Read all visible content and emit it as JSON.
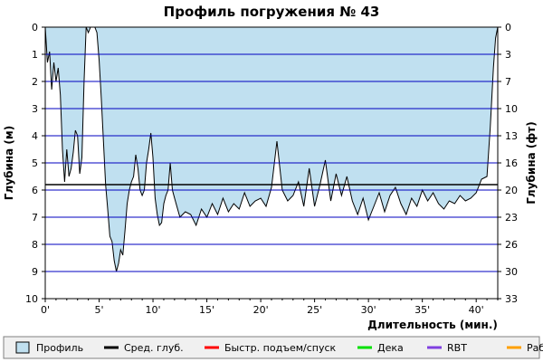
{
  "chart_data": {
    "type": "area",
    "title": "Профиль погружения № 43",
    "xlabel": "Длительность (мин.)",
    "ylabel_left": "Глубина (м)",
    "ylabel_right": "Глубина (фт)",
    "xlim": [
      0,
      42
    ],
    "ylim": [
      10,
      0
    ],
    "y_inverted": true,
    "grid": true,
    "x_ticks": [
      "0'",
      "5'",
      "10'",
      "15'",
      "20'",
      "25'",
      "30'",
      "35'",
      "40'"
    ],
    "x_tick_values": [
      0,
      5,
      10,
      15,
      20,
      25,
      30,
      35,
      40
    ],
    "y_ticks_left": [
      "0",
      "1",
      "2",
      "3",
      "4",
      "5",
      "6",
      "7",
      "8",
      "9",
      "10"
    ],
    "y_tick_values_left": [
      0,
      1,
      2,
      3,
      4,
      5,
      6,
      7,
      8,
      9,
      10
    ],
    "y_ticks_right": [
      "0",
      "3",
      "7",
      "10",
      "13",
      "16",
      "20",
      "23",
      "26",
      "30",
      "33"
    ],
    "avg_depth": 5.8,
    "series": [
      {
        "name": "Профиль",
        "color": "#c0e0f0",
        "x": [
          0,
          0.2,
          0.4,
          0.6,
          0.8,
          1.0,
          1.2,
          1.4,
          1.6,
          1.8,
          2.0,
          2.2,
          2.4,
          2.6,
          2.8,
          3.0,
          3.2,
          3.4,
          3.6,
          3.8,
          4.0,
          4.2,
          4.4,
          4.6,
          4.8,
          5.0,
          5.2,
          5.4,
          5.6,
          5.8,
          6.0,
          6.2,
          6.4,
          6.6,
          6.8,
          7.0,
          7.2,
          7.4,
          7.6,
          7.8,
          8.0,
          8.2,
          8.4,
          8.6,
          8.8,
          9.0,
          9.2,
          9.4,
          9.6,
          9.8,
          10.0,
          10.2,
          10.4,
          10.6,
          10.8,
          11.0,
          11.2,
          11.4,
          11.6,
          11.8,
          12.0,
          12.5,
          13.0,
          13.5,
          14.0,
          14.5,
          15.0,
          15.5,
          16.0,
          16.5,
          17.0,
          17.5,
          18.0,
          18.5,
          19.0,
          19.5,
          20.0,
          20.5,
          21.0,
          21.5,
          22.0,
          22.5,
          23.0,
          23.5,
          24.0,
          24.5,
          25.0,
          25.5,
          26.0,
          26.5,
          27.0,
          27.5,
          28.0,
          28.5,
          29.0,
          29.5,
          30.0,
          30.5,
          31.0,
          31.5,
          32.0,
          32.5,
          33.0,
          33.5,
          34.0,
          34.5,
          35.0,
          35.5,
          36.0,
          36.5,
          37.0,
          37.5,
          38.0,
          38.5,
          39.0,
          39.5,
          40.0,
          40.5,
          41.0,
          41.3,
          41.6,
          41.8,
          42.0
        ],
        "values": [
          0,
          1.3,
          0.9,
          2.3,
          1.3,
          2.0,
          1.5,
          2.5,
          4.5,
          5.7,
          4.5,
          5.5,
          5.2,
          4.6,
          3.8,
          4.0,
          5.4,
          4.8,
          2.0,
          0.0,
          0.2,
          0.0,
          0.0,
          0.0,
          0.2,
          1.2,
          2.6,
          4.2,
          5.8,
          6.7,
          7.7,
          7.9,
          8.6,
          9.0,
          8.7,
          8.2,
          8.4,
          7.5,
          6.5,
          6.0,
          5.7,
          5.5,
          4.7,
          5.2,
          6.0,
          6.2,
          6.0,
          5.0,
          4.5,
          3.9,
          4.8,
          6.3,
          6.9,
          7.3,
          7.2,
          6.5,
          6.2,
          6.0,
          5.0,
          6.0,
          6.3,
          7.0,
          6.8,
          6.9,
          7.3,
          6.7,
          7.0,
          6.5,
          6.9,
          6.3,
          6.8,
          6.5,
          6.7,
          6.1,
          6.6,
          6.4,
          6.3,
          6.6,
          5.9,
          4.2,
          6.0,
          6.4,
          6.2,
          5.7,
          6.6,
          5.2,
          6.6,
          5.8,
          4.9,
          6.4,
          5.4,
          6.2,
          5.5,
          6.4,
          6.9,
          6.3,
          7.1,
          6.6,
          6.1,
          6.8,
          6.2,
          5.9,
          6.5,
          6.9,
          6.3,
          6.6,
          6.0,
          6.4,
          6.1,
          6.5,
          6.7,
          6.4,
          6.5,
          6.2,
          6.4,
          6.3,
          6.1,
          5.6,
          5.5,
          3.7,
          1.5,
          0.4,
          0.0
        ]
      }
    ]
  },
  "legend": {
    "items": [
      {
        "label": "Профиль",
        "color": "#c0e0f0",
        "kind": "box"
      },
      {
        "label": "Сред. глуб.",
        "color": "#000000",
        "kind": "line"
      },
      {
        "label": "Быстр. подъем/спуск",
        "color": "#ff0000",
        "kind": "line"
      },
      {
        "label": "Дека",
        "color": "#00e000",
        "kind": "line"
      },
      {
        "label": "RBT",
        "color": "#8040e0",
        "kind": "line"
      },
      {
        "label": "Раб.",
        "color": "#ffa000",
        "kind": "line"
      }
    ]
  },
  "colors": {
    "grid": "#0000c0",
    "frame": "#000000",
    "profile_line": "#000000",
    "legend_bg": "#f0f0f0"
  }
}
